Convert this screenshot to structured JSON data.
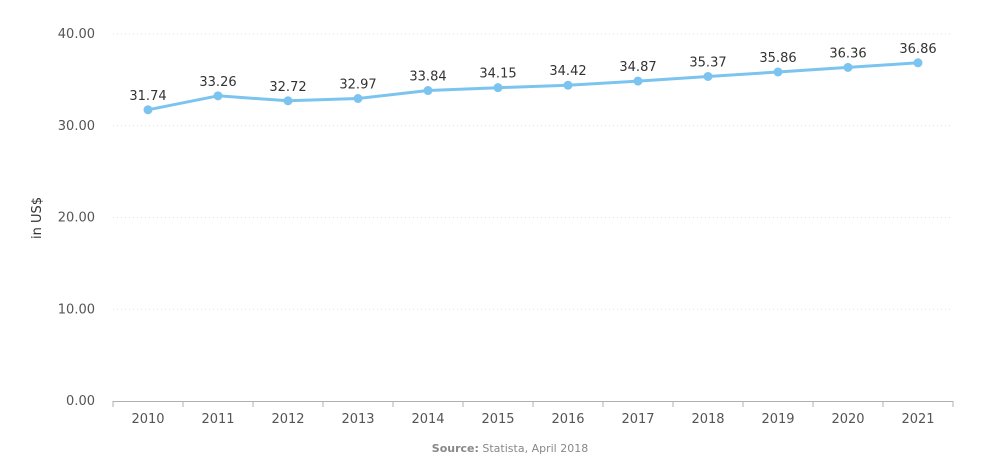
{
  "chart_data": {
    "type": "line",
    "categories": [
      "2010",
      "2011",
      "2012",
      "2013",
      "2014",
      "2015",
      "2016",
      "2017",
      "2018",
      "2019",
      "2020",
      "2021"
    ],
    "series": [
      {
        "values": [
          31.74,
          33.26,
          32.72,
          32.97,
          33.84,
          34.15,
          34.42,
          34.87,
          35.37,
          35.86,
          36.36,
          36.86
        ],
        "color": "#7cc4f0"
      }
    ],
    "data_labels": [
      "31.74",
      "33.26",
      "32.72",
      "32.97",
      "33.84",
      "34.15",
      "34.42",
      "34.87",
      "35.37",
      "35.86",
      "36.36",
      "36.86"
    ],
    "ylabel": "in US$",
    "ylim": [
      0,
      40
    ],
    "yticks": [
      "0.00",
      "10.00",
      "20.00",
      "30.00",
      "40.00"
    ],
    "ytick_values": [
      0,
      10,
      20,
      30,
      40
    ],
    "grid": true,
    "legend": "none"
  },
  "footer": {
    "source_label": "Source:",
    "source_text": "Statista, April 2018"
  }
}
